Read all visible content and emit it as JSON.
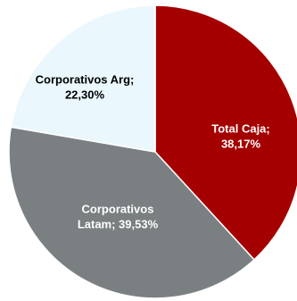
{
  "chart_data": {
    "type": "pie",
    "title": "",
    "start_angle_deg": 0,
    "direction": "clockwise",
    "slices": [
      {
        "name": "Total Caja",
        "value": 38.17,
        "color": "#a50000",
        "label_lines": [
          "Total Caja;",
          "38,17%"
        ],
        "label_color": "#ffffff"
      },
      {
        "name": "Corporativos Latam",
        "value": 39.53,
        "color": "#7a7f82",
        "label_lines": [
          "Corporativos",
          "Latam; 39,53%"
        ],
        "label_color": "#ffffff"
      },
      {
        "name": "Corporativos Arg",
        "value": 22.3,
        "color": "#eaf7fd",
        "label_lines": [
          "Corporativos Arg;",
          "22,30%"
        ],
        "label_color": "#000000"
      }
    ],
    "legend": "none",
    "labels": "inside"
  }
}
